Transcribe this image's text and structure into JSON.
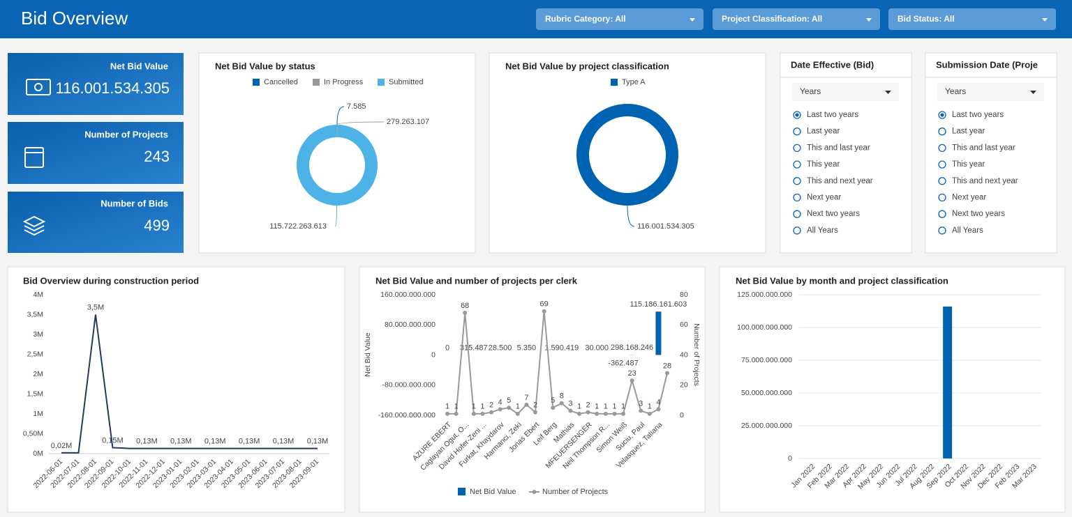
{
  "header": {
    "title": "Bid Overview",
    "filters": [
      "Rubric Category: All",
      "Project Classification: All",
      "Bid Status: All"
    ]
  },
  "kpis": [
    {
      "label": "Net Bid Value",
      "value": "116.001.534.305"
    },
    {
      "label": "Number of Projects",
      "value": "243"
    },
    {
      "label": "Number of Bids",
      "value": "499"
    }
  ],
  "date_filters": [
    {
      "title": "Date Effective (Bid)",
      "dropdown": "Years",
      "selected": 0,
      "options": [
        "Last two years",
        "Last year",
        "This and last year",
        "This year",
        "This and next year",
        "Next year",
        "Next two years",
        "All Years"
      ]
    },
    {
      "title": "Submission Date (Proje",
      "dropdown": "Years",
      "selected": 0,
      "options": [
        "Last two years",
        "Last year",
        "This and last year",
        "This year",
        "This and next year",
        "Next year",
        "Next two years",
        "All Years"
      ]
    }
  ],
  "chart_data": [
    {
      "type": "donut",
      "title": "Net Bid Value by status",
      "categories": [
        "Cancelled",
        "In Progress",
        "Submitted"
      ],
      "colors": [
        "#0063b1",
        "#999999",
        "#4db3e6"
      ],
      "values": [
        7585,
        279263107,
        115722263613
      ],
      "value_labels": [
        "7.585",
        "279.263.107",
        "115.722.263.613"
      ]
    },
    {
      "type": "donut",
      "title": "Net Bid Value by project classification",
      "categories": [
        "Type A"
      ],
      "colors": [
        "#0063b1"
      ],
      "values": [
        116001534305
      ],
      "value_labels": [
        "116.001.534.305"
      ]
    },
    {
      "type": "line",
      "title": "Bid Overview during construction period",
      "color": "#1f3b5c",
      "categories": [
        "2022-06-01",
        "2022-07-01",
        "2022-08-01",
        "2022-09-01",
        "2022-10-01",
        "2022-11-01",
        "2022-12-01",
        "2023-01-01",
        "2023-02-01",
        "2023-03-01",
        "2023-04-01",
        "2023-05-01",
        "2023-06-01",
        "2023-07-01",
        "2023-08-01",
        "2023-09-01"
      ],
      "values": [
        0.02,
        0.02,
        3.5,
        0.15,
        0.13,
        0.13,
        0.13,
        0.13,
        0.13,
        0.13,
        0.13,
        0.13,
        0.13,
        0.13,
        0.13,
        0.13
      ],
      "value_labels": [
        "0,02M",
        null,
        "3,5M",
        "0,15M",
        null,
        "0,13M",
        null,
        "0,13M",
        null,
        "0,13M",
        null,
        "0,13M",
        null,
        "0,13M",
        null,
        "0,13M"
      ],
      "ylim": [
        0,
        4
      ],
      "yticks": [
        {
          "value": 0,
          "label": "0M"
        },
        {
          "value": 0.5,
          "label": "0,50M"
        },
        {
          "value": 1,
          "label": "1M"
        },
        {
          "value": 1.5,
          "label": "1,5M"
        },
        {
          "value": 2,
          "label": "2M"
        },
        {
          "value": 2.5,
          "label": "2,5M"
        },
        {
          "value": 3,
          "label": "3M"
        },
        {
          "value": 3.5,
          "label": "3,5M"
        },
        {
          "value": 4,
          "label": "4M"
        }
      ]
    },
    {
      "type": "combo",
      "title": "Net Bid Value and number of projects per clerk",
      "categories": [
        "AZURE EBERT",
        null,
        "Caglayan Ogut, O...",
        null,
        "David Hofer-Zeni ...",
        null,
        "Furkat, Khaydarov",
        null,
        "Harmanci, Zeki",
        null,
        "Jonas Ebert",
        null,
        "Leif Berg",
        null,
        "Mathias",
        null,
        "MFEUERSENGER",
        null,
        "Neil Thompson R...",
        null,
        "Simon Weiß",
        null,
        "Suciu, Paul",
        null,
        "Velasquez, Tatiana",
        null
      ],
      "series": [
        {
          "name": "Net Bid Value",
          "color": "#0063b1",
          "values": [
            0,
            null,
            null,
            315487,
            null,
            null,
            28500,
            null,
            null,
            5350,
            null,
            null,
            null,
            1590419,
            null,
            null,
            null,
            30000,
            null,
            null,
            -362487,
            298168246,
            null,
            null,
            115186161603,
            null
          ],
          "value_labels": [
            "0",
            null,
            null,
            "315.487",
            null,
            null,
            "28.500",
            null,
            null,
            "5.350",
            null,
            null,
            null,
            "1.590.419",
            null,
            null,
            null,
            "30.000",
            null,
            null,
            "-362.487",
            "298.168.246",
            null,
            null,
            "115.186.161.603",
            null
          ]
        },
        {
          "name": "Number of Projects",
          "color": "#999999",
          "axis": "y2",
          "values": [
            1,
            1,
            68,
            1,
            1,
            2,
            4,
            5,
            1,
            7,
            2,
            69,
            5,
            8,
            3,
            1,
            2,
            1,
            1,
            1,
            1,
            23,
            3,
            1,
            4,
            28
          ]
        }
      ],
      "ylabel": "Net Bid Value",
      "y2label": "Number of Projects",
      "ylim": [
        -160000000000,
        160000000000
      ],
      "yticks": [
        {
          "value": -160000000000,
          "label": "-160.000.000.000"
        },
        {
          "value": -80000000000,
          "label": "-80.000.000.000"
        },
        0,
        {
          "value": 80000000000,
          "label": "80.000.000.000"
        },
        {
          "value": 160000000000,
          "label": "160.000.000.000"
        }
      ],
      "y2lim": [
        0,
        80
      ],
      "y2ticks": [
        0,
        20,
        40,
        60,
        80
      ]
    },
    {
      "type": "bar",
      "title": "Net Bid Value by month and project classification",
      "color": "#0063b1",
      "grid": true,
      "categories": [
        "Jan 2022",
        "Feb 2022",
        "Mar 2022",
        "Apr 2022",
        "May 2022",
        "Jun 2022",
        "Jul 2022",
        "Aug 2022",
        "Sep 2022",
        "Oct 2022",
        "Nov 2022",
        "Dec 2022",
        "Feb 2023",
        "Mar 2023"
      ],
      "values": [
        null,
        null,
        null,
        null,
        null,
        null,
        null,
        null,
        116001534305,
        null,
        null,
        null,
        null,
        null
      ],
      "ylim": [
        0,
        125000000000
      ],
      "yticks": [
        0,
        {
          "value": 25000000000,
          "label": "25.000.000.000"
        },
        {
          "value": 50000000000,
          "label": "50.000.000.000"
        },
        {
          "value": 75000000000,
          "label": "75.000.000.000"
        },
        {
          "value": 100000000000,
          "label": "100.000.000.000"
        },
        {
          "value": 125000000000,
          "label": "125.000.000.000"
        }
      ]
    }
  ]
}
